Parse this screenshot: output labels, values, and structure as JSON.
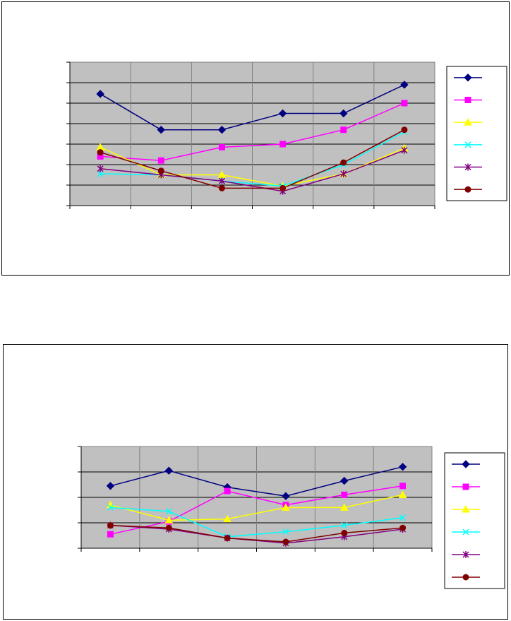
{
  "chart_data": [
    {
      "type": "line",
      "title": "",
      "xlabel": "",
      "ylabel": "",
      "ylim": [
        0,
        7
      ],
      "yticks": [
        0,
        1,
        2,
        3,
        4,
        5,
        6,
        7
      ],
      "grid": true,
      "legend": "right",
      "plot_bg": "#c0c0c0",
      "categories": [
        "",
        "",
        "",
        "",
        "",
        ""
      ],
      "series": [
        {
          "color": "#000080",
          "marker": "diamond",
          "values": [
            5.45,
            3.7,
            3.7,
            4.5,
            4.5,
            5.9
          ]
        },
        {
          "color": "#ff00ff",
          "marker": "square",
          "values": [
            2.4,
            2.2,
            2.85,
            3.0,
            3.7,
            5.0
          ]
        },
        {
          "color": "#ffff00",
          "marker": "triangle",
          "values": [
            2.85,
            1.5,
            1.5,
            0.95,
            1.55,
            2.8
          ]
        },
        {
          "color": "#00ffff",
          "marker": "x",
          "values": [
            1.55,
            1.5,
            1.2,
            0.95,
            2.0,
            3.6
          ]
        },
        {
          "color": "#800080",
          "marker": "star",
          "values": [
            1.8,
            1.5,
            1.2,
            0.7,
            1.55,
            2.7
          ]
        },
        {
          "color": "#800000",
          "marker": "circle",
          "values": [
            2.6,
            1.7,
            0.85,
            0.85,
            2.1,
            3.7
          ]
        }
      ]
    },
    {
      "type": "line",
      "title": "",
      "xlabel": "",
      "ylabel": "",
      "ylim": [
        0,
        4
      ],
      "yticks": [
        0,
        1,
        2,
        3,
        4
      ],
      "grid": true,
      "legend": "right",
      "plot_bg": "#c0c0c0",
      "categories": [
        "",
        "",
        "",
        "",
        "",
        ""
      ],
      "series": [
        {
          "color": "#000080",
          "marker": "diamond",
          "values": [
            2.45,
            3.05,
            2.4,
            2.05,
            2.65,
            3.2
          ]
        },
        {
          "color": "#ff00ff",
          "marker": "square",
          "values": [
            0.55,
            1.05,
            2.25,
            1.7,
            2.1,
            2.45
          ]
        },
        {
          "color": "#ffff00",
          "marker": "triangle",
          "values": [
            1.7,
            1.1,
            1.15,
            1.6,
            1.6,
            2.1
          ]
        },
        {
          "color": "#00ffff",
          "marker": "x",
          "values": [
            1.6,
            1.45,
            0.45,
            0.65,
            0.9,
            1.2
          ]
        },
        {
          "color": "#800080",
          "marker": "star",
          "values": [
            0.9,
            0.75,
            0.4,
            0.2,
            0.45,
            0.75
          ]
        },
        {
          "color": "#800000",
          "marker": "circle",
          "values": [
            0.9,
            0.8,
            0.4,
            0.25,
            0.6,
            0.8
          ]
        }
      ]
    }
  ]
}
